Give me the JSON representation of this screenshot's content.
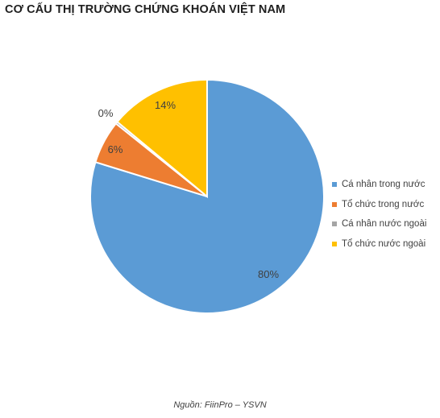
{
  "title": "CƠ CẤU THỊ TRƯỜNG CHỨNG KHOÁN VIỆT NAM",
  "source": "Nguồn: FiinPro – YSVN",
  "chart_data": {
    "type": "pie",
    "title": "CƠ CẤU THỊ TRƯỜNG CHỨNG KHOÁN VIỆT NAM",
    "legend_position": "right",
    "slices": [
      {
        "name": "Cá nhân trong nước",
        "value": 80,
        "label": "80%",
        "color": "#5B9BD5"
      },
      {
        "name": "Tổ chức trong nước",
        "value": 6,
        "label": "6%",
        "color": "#ED7D31"
      },
      {
        "name": "Cá nhân nước ngoài",
        "value": 0.3,
        "label": "0%",
        "color": "#A5A5A5"
      },
      {
        "name": "Tổ chức nước ngoài",
        "value": 14,
        "label": "14%",
        "color": "#FFC000"
      }
    ]
  }
}
